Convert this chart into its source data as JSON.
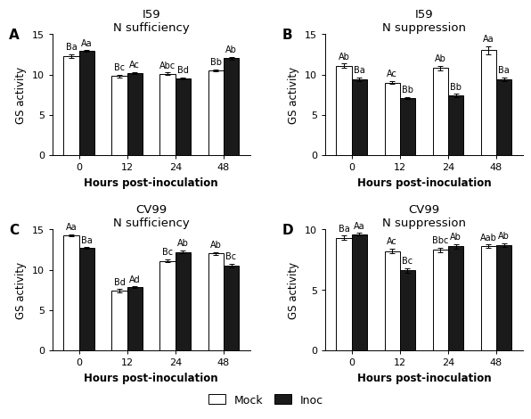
{
  "panels": [
    {
      "label": "A",
      "title": "I59\nN sufficiency",
      "mock_values": [
        12.3,
        9.8,
        10.1,
        10.5
      ],
      "inoc_values": [
        12.9,
        10.2,
        9.5,
        12.0
      ],
      "mock_errors": [
        0.2,
        0.15,
        0.15,
        0.12
      ],
      "inoc_errors": [
        0.12,
        0.1,
        0.12,
        0.15
      ],
      "mock_labels": [
        "Ba",
        "Bc",
        "Abc",
        "Bb"
      ],
      "inoc_labels": [
        "Aa",
        "Ac",
        "Bd",
        "Ab"
      ],
      "ylim": [
        0,
        15
      ],
      "yticks": [
        0,
        5,
        10,
        15
      ]
    },
    {
      "label": "B",
      "title": "I59\nN suppression",
      "mock_values": [
        11.1,
        9.0,
        10.8,
        13.0
      ],
      "inoc_values": [
        9.4,
        7.1,
        7.4,
        9.4
      ],
      "mock_errors": [
        0.25,
        0.2,
        0.28,
        0.5
      ],
      "inoc_errors": [
        0.25,
        0.12,
        0.18,
        0.25
      ],
      "mock_labels": [
        "Ab",
        "Ac",
        "Ab",
        "Aa"
      ],
      "inoc_labels": [
        "Ba",
        "Bb",
        "Bb",
        "Ba"
      ],
      "ylim": [
        0,
        15
      ],
      "yticks": [
        0,
        5,
        10,
        15
      ]
    },
    {
      "label": "C",
      "title": "CV99\nN sufficiency",
      "mock_values": [
        14.3,
        7.4,
        11.1,
        12.0
      ],
      "inoc_values": [
        12.7,
        7.8,
        12.2,
        10.5
      ],
      "mock_errors": [
        0.12,
        0.18,
        0.2,
        0.15
      ],
      "inoc_errors": [
        0.1,
        0.12,
        0.18,
        0.25
      ],
      "mock_labels": [
        "Aa",
        "Bd",
        "Bc",
        "Ab"
      ],
      "inoc_labels": [
        "Ba",
        "Ad",
        "Ab",
        "Bc"
      ],
      "ylim": [
        0,
        15
      ],
      "yticks": [
        0,
        5,
        10,
        15
      ]
    },
    {
      "label": "D",
      "title": "CV99\nN suppression",
      "mock_values": [
        9.3,
        8.2,
        8.3,
        8.6
      ],
      "inoc_values": [
        9.6,
        6.6,
        8.6,
        8.7
      ],
      "mock_errors": [
        0.18,
        0.2,
        0.18,
        0.15
      ],
      "inoc_errors": [
        0.12,
        0.18,
        0.2,
        0.15
      ],
      "mock_labels": [
        "Ba",
        "Ac",
        "Bbc",
        "Aab"
      ],
      "inoc_labels": [
        "Aa",
        "Bc",
        "Ab",
        "Ab"
      ],
      "ylim": [
        0,
        10
      ],
      "yticks": [
        0,
        5,
        10
      ]
    }
  ],
  "xticks": [
    0,
    12,
    24,
    48
  ],
  "xlabel": "Hours post-inoculation",
  "ylabel": "GS activity",
  "mock_color": "#ffffff",
  "inoc_color": "#1a1a1a",
  "bar_width": 0.32,
  "edge_color": "#000000",
  "annotation_fontsize": 7.0,
  "tick_fontsize": 8,
  "title_fontsize": 9.5,
  "axis_label_fontsize": 8.5,
  "panel_label_fontsize": 11
}
